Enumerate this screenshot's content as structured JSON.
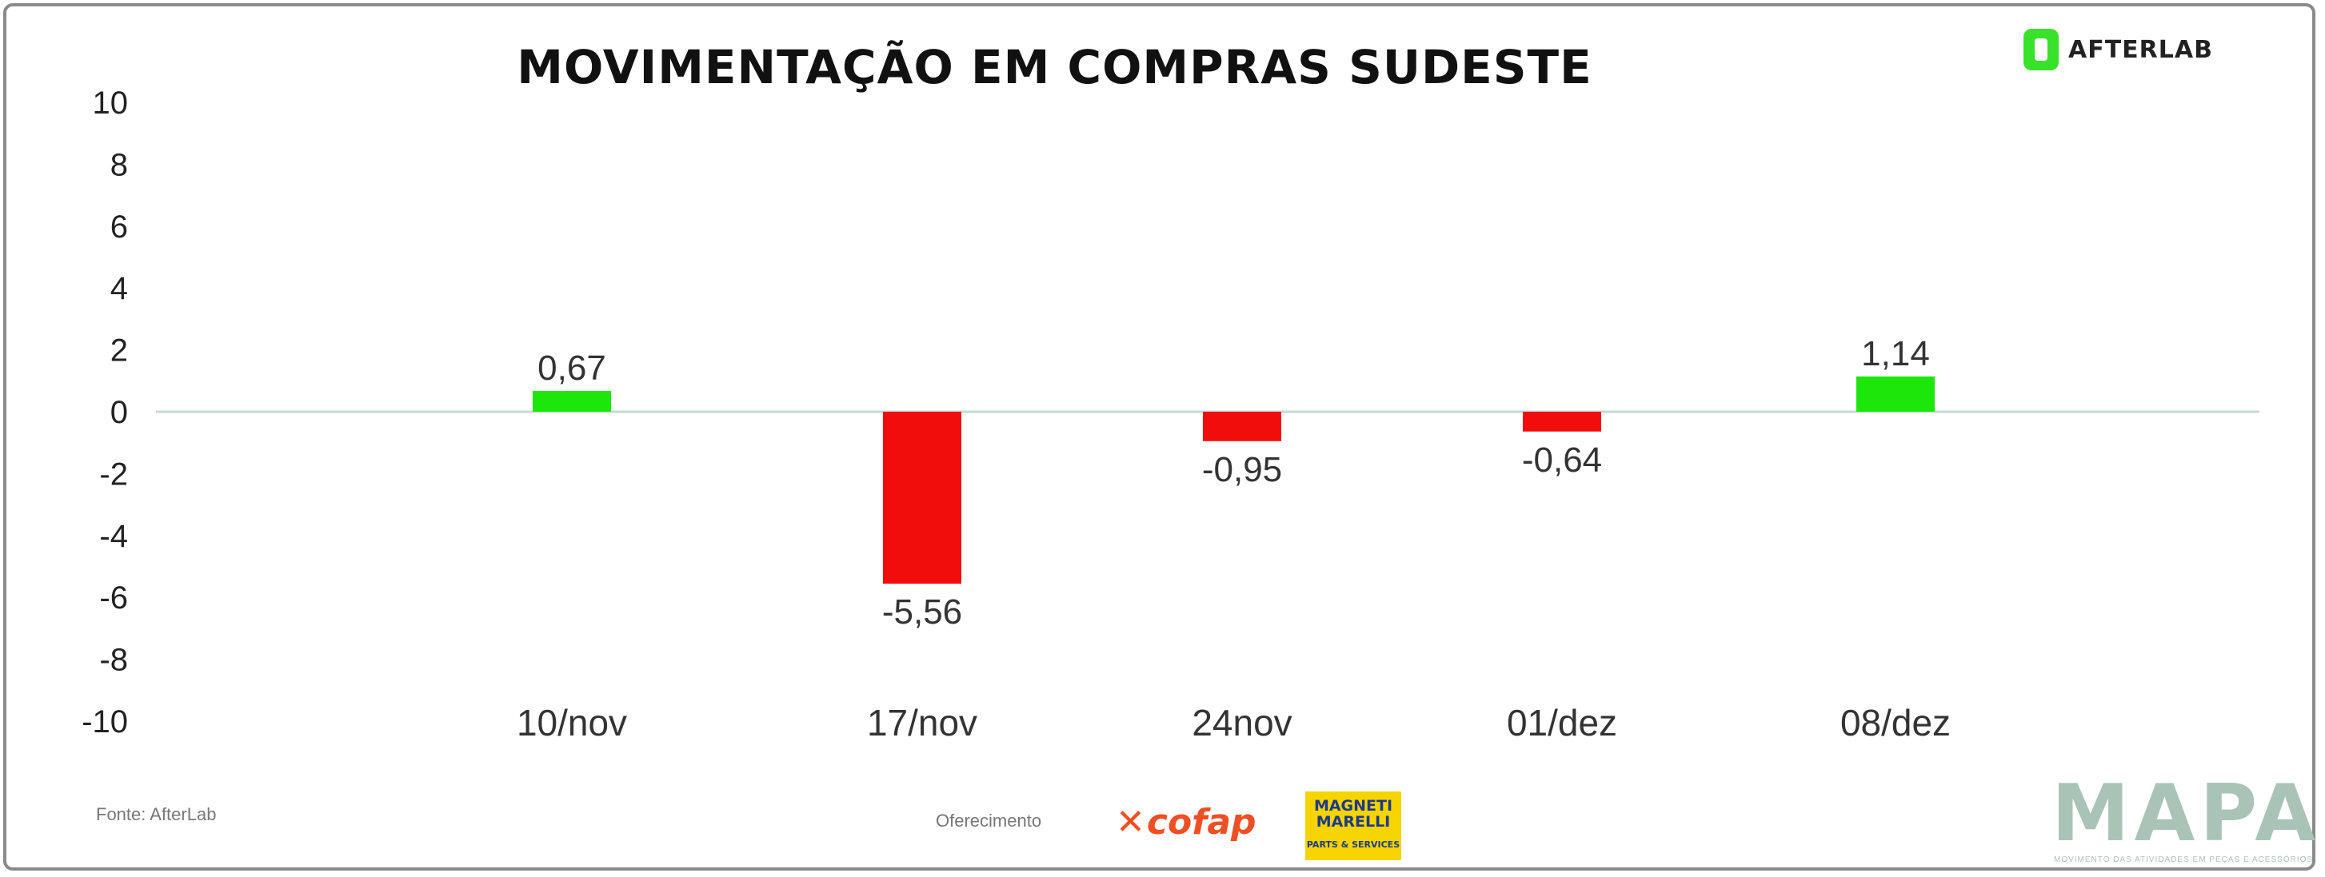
{
  "header": {
    "title": "MOVIMENTAÇÃO EM COMPRAS SUDESTE",
    "logo_text": "AFTERLAB"
  },
  "chart_data": {
    "type": "bar",
    "title": "MOVIMENTAÇÃO EM COMPRAS SUDESTE",
    "categories": [
      "10/nov",
      "17/nov",
      "24nov",
      "01/dez",
      "08/dez"
    ],
    "values": [
      0.67,
      -5.56,
      -0.95,
      -0.64,
      1.14
    ],
    "value_labels": [
      "0,67",
      "-5,56",
      "-0,95",
      "-0,64",
      "1,14"
    ],
    "xlabel": "",
    "ylabel": "",
    "ylim": [
      -10,
      10
    ],
    "yticks": [
      10,
      8,
      6,
      4,
      2,
      0,
      -2,
      -4,
      -6,
      -8,
      -10
    ],
    "grid": false,
    "colors": {
      "positive": "#1de60a",
      "negative": "#f20d0d",
      "zero_line": "#c5dbd6"
    }
  },
  "footer": {
    "source": "Fonte: AfterLab",
    "sponsor_label": "Oferecimento",
    "sponsor1": "cofap",
    "sponsor2_line1": "MAGNETI",
    "sponsor2_line2": "MARELLI",
    "sponsor2_sub": "PARTS & SERVICES",
    "brand": "MAPA",
    "brand_sub": "MOVIMENTO DAS ATIVIDADES EM PEÇAS E ACESSÓRIOS"
  }
}
